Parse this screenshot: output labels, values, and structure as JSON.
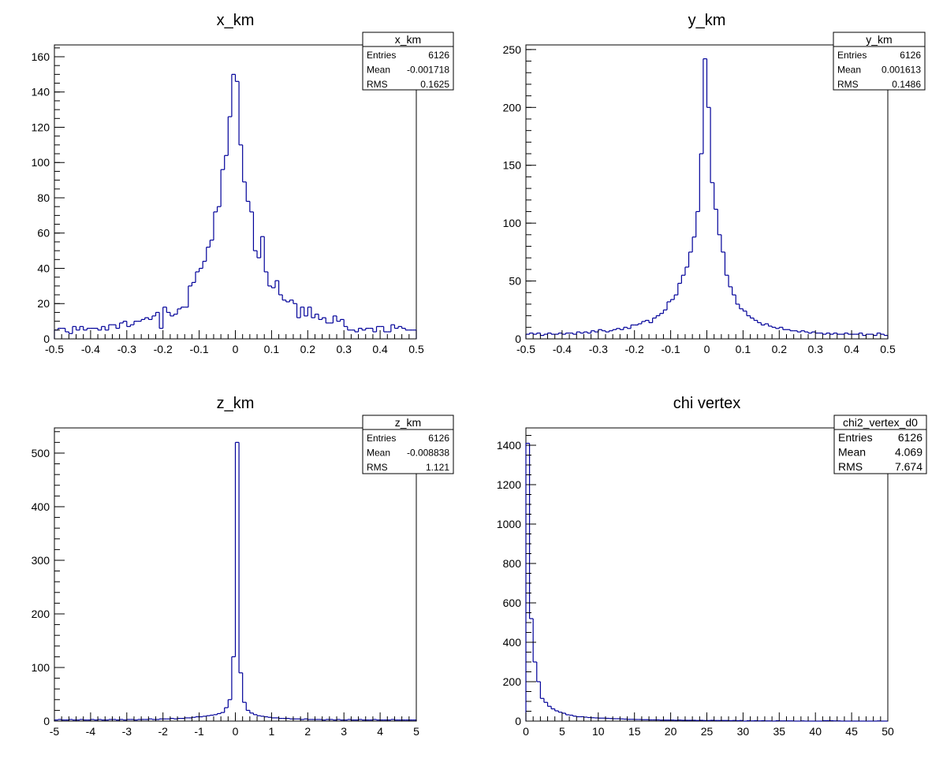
{
  "chart_data": [
    {
      "type": "bar",
      "title": "x_km",
      "xlim": [
        -0.5,
        0.5
      ],
      "ylim": [
        0,
        166.7
      ],
      "xticks": [
        -0.5,
        -0.4,
        -0.3,
        -0.2,
        -0.1,
        0,
        0.1,
        0.2,
        0.3,
        0.4,
        0.5
      ],
      "xtick_labels": [
        "-0.5",
        "-0.4",
        "-0.3",
        "-0.2",
        "-0.1",
        "0",
        "0.1",
        "0.2",
        "0.3",
        "0.4",
        "0.5"
      ],
      "xminor": 5,
      "yticks": [
        0,
        20,
        40,
        60,
        80,
        100,
        120,
        140,
        160
      ],
      "ytick_labels": [
        "0",
        "20",
        "40",
        "60",
        "80",
        "100",
        "120",
        "140",
        "160"
      ],
      "yminor": 4,
      "bin_low": -0.5,
      "bin_width": 0.01,
      "values": [
        5,
        6,
        6,
        4,
        3,
        7,
        5,
        7,
        5,
        6,
        6,
        6,
        5,
        7,
        5,
        8,
        8,
        6,
        9,
        10,
        7,
        8,
        10,
        10,
        11,
        12,
        11,
        13,
        15,
        6,
        18,
        15,
        13,
        14,
        17,
        18,
        18,
        30,
        32,
        38,
        40,
        44,
        52,
        56,
        72,
        75,
        96,
        104,
        126,
        150,
        146,
        110,
        89,
        78,
        72,
        50,
        46,
        58,
        38,
        30,
        29,
        33,
        25,
        22,
        21,
        22,
        20,
        12,
        18,
        13,
        18,
        12,
        14,
        11,
        12,
        9,
        9,
        13,
        10,
        11,
        7,
        5,
        5,
        4,
        6,
        5,
        6,
        6,
        4,
        7,
        7,
        4,
        4,
        8,
        6,
        7,
        6,
        5,
        5,
        5
      ],
      "stats": {
        "name": "x_km",
        "rows": [
          {
            "label": "Entries",
            "value": "6126"
          },
          {
            "label": "Mean",
            "value": "-0.001718"
          },
          {
            "label": "RMS",
            "value": "0.1625"
          }
        ]
      }
    },
    {
      "type": "bar",
      "title": "y_km",
      "xlim": [
        -0.5,
        0.5
      ],
      "ylim": [
        0,
        254
      ],
      "xticks": [
        -0.5,
        -0.4,
        -0.3,
        -0.2,
        -0.1,
        0,
        0.1,
        0.2,
        0.3,
        0.4,
        0.5
      ],
      "xtick_labels": [
        "-0.5",
        "-0.4",
        "-0.3",
        "-0.2",
        "-0.1",
        "0",
        "0.1",
        "0.2",
        "0.3",
        "0.4",
        "0.5"
      ],
      "xminor": 5,
      "yticks": [
        0,
        50,
        100,
        150,
        200,
        250
      ],
      "ytick_labels": [
        "0",
        "50",
        "100",
        "150",
        "200",
        "250"
      ],
      "yminor": 5,
      "bin_low": -0.5,
      "bin_width": 0.01,
      "values": [
        4,
        5,
        4,
        5,
        3,
        4,
        5,
        4,
        4,
        5,
        4,
        5,
        5,
        4,
        6,
        5,
        6,
        5,
        7,
        6,
        8,
        7,
        6,
        7,
        8,
        9,
        8,
        10,
        9,
        12,
        12,
        13,
        15,
        16,
        14,
        18,
        20,
        22,
        25,
        32,
        34,
        38,
        48,
        55,
        62,
        75,
        88,
        110,
        160,
        242,
        200,
        135,
        112,
        90,
        75,
        55,
        45,
        38,
        30,
        26,
        24,
        20,
        18,
        16,
        14,
        12,
        13,
        11,
        10,
        9,
        10,
        8,
        8,
        7,
        7,
        6,
        7,
        6,
        5,
        6,
        5,
        5,
        4,
        5,
        4,
        5,
        4,
        4,
        5,
        4,
        4,
        4,
        5,
        3,
        4,
        4,
        3,
        5,
        4,
        3
      ],
      "stats": {
        "name": "y_km",
        "rows": [
          {
            "label": "Entries",
            "value": "6126"
          },
          {
            "label": "Mean",
            "value": "0.001613"
          },
          {
            "label": "RMS",
            "value": "0.1486"
          }
        ]
      }
    },
    {
      "type": "bar",
      "title": "z_km",
      "xlim": [
        -5,
        5
      ],
      "ylim": [
        0,
        547
      ],
      "xticks": [
        -5,
        -4,
        -3,
        -2,
        -1,
        0,
        1,
        2,
        3,
        4,
        5
      ],
      "xtick_labels": [
        "-5",
        "-4",
        "-3",
        "-2",
        "-1",
        "0",
        "1",
        "2",
        "3",
        "4",
        "5"
      ],
      "xminor": 5,
      "yticks": [
        0,
        100,
        200,
        300,
        400,
        500
      ],
      "ytick_labels": [
        "0",
        "100",
        "200",
        "300",
        "400",
        "500"
      ],
      "yminor": 5,
      "bin_low": -5,
      "bin_width": 0.1,
      "values": [
        2,
        3,
        2,
        2,
        3,
        2,
        2,
        3,
        2,
        2,
        3,
        2,
        3,
        2,
        2,
        3,
        3,
        2,
        3,
        2,
        3,
        3,
        2,
        3,
        3,
        3,
        4,
        3,
        3,
        4,
        4,
        4,
        5,
        4,
        5,
        5,
        6,
        6,
        7,
        8,
        8,
        9,
        10,
        11,
        12,
        14,
        16,
        25,
        40,
        120,
        520,
        90,
        35,
        20,
        15,
        12,
        10,
        9,
        8,
        7,
        6,
        6,
        5,
        5,
        5,
        4,
        4,
        4,
        3,
        4,
        3,
        3,
        3,
        3,
        2,
        3,
        3,
        2,
        3,
        2,
        2,
        3,
        2,
        2,
        3,
        2,
        2,
        2,
        3,
        2,
        2,
        2,
        2,
        3,
        2,
        2,
        2,
        2,
        2,
        2
      ],
      "stats": {
        "name": "z_km",
        "rows": [
          {
            "label": "Entries",
            "value": "6126"
          },
          {
            "label": "Mean",
            "value": "-0.008838"
          },
          {
            "label": "RMS",
            "value": "1.121"
          }
        ]
      }
    },
    {
      "type": "bar",
      "title": "chi vertex",
      "xlim": [
        0,
        50
      ],
      "ylim": [
        0,
        1488
      ],
      "xticks": [
        0,
        5,
        10,
        15,
        20,
        25,
        30,
        35,
        40,
        45,
        50
      ],
      "xtick_labels": [
        "0",
        "5",
        "10",
        "15",
        "20",
        "25",
        "30",
        "35",
        "40",
        "45",
        "50"
      ],
      "xminor": 5,
      "yticks": [
        0,
        200,
        400,
        600,
        800,
        1000,
        1200,
        1400
      ],
      "ytick_labels": [
        "0",
        "200",
        "400",
        "600",
        "800",
        "1000",
        "1200",
        "1400"
      ],
      "yminor": 4,
      "bin_low": 0,
      "bin_width": 0.5,
      "values": [
        1410,
        520,
        300,
        200,
        115,
        95,
        75,
        62,
        52,
        45,
        40,
        32,
        30,
        25,
        22,
        22,
        20,
        18,
        17,
        16,
        15,
        15,
        14,
        13,
        12,
        12,
        11,
        10,
        9,
        9,
        8,
        8,
        7,
        7,
        6,
        6,
        6,
        5,
        5,
        5,
        5,
        4,
        5,
        4,
        4,
        4,
        4,
        3,
        4,
        3,
        3,
        4,
        3,
        3,
        3,
        3,
        2,
        3,
        2,
        3,
        0,
        2,
        1,
        2,
        1,
        2,
        1,
        1,
        0,
        2,
        1,
        1,
        1,
        1,
        0,
        0,
        1,
        0,
        0,
        0,
        0,
        0,
        2,
        2,
        2,
        1,
        1,
        0,
        0,
        0,
        0,
        0,
        0,
        0,
        0,
        0,
        0,
        1,
        0,
        0
      ],
      "stats": {
        "name": "chi2_vertex_d0",
        "rows": [
          {
            "label": "Entries",
            "value": "6126"
          },
          {
            "label": "Mean",
            "value": "4.069"
          },
          {
            "label": "RMS",
            "value": "7.674"
          }
        ]
      }
    }
  ],
  "colors": {
    "line": "#000099",
    "axis": "#000000",
    "background": "#ffffff"
  }
}
